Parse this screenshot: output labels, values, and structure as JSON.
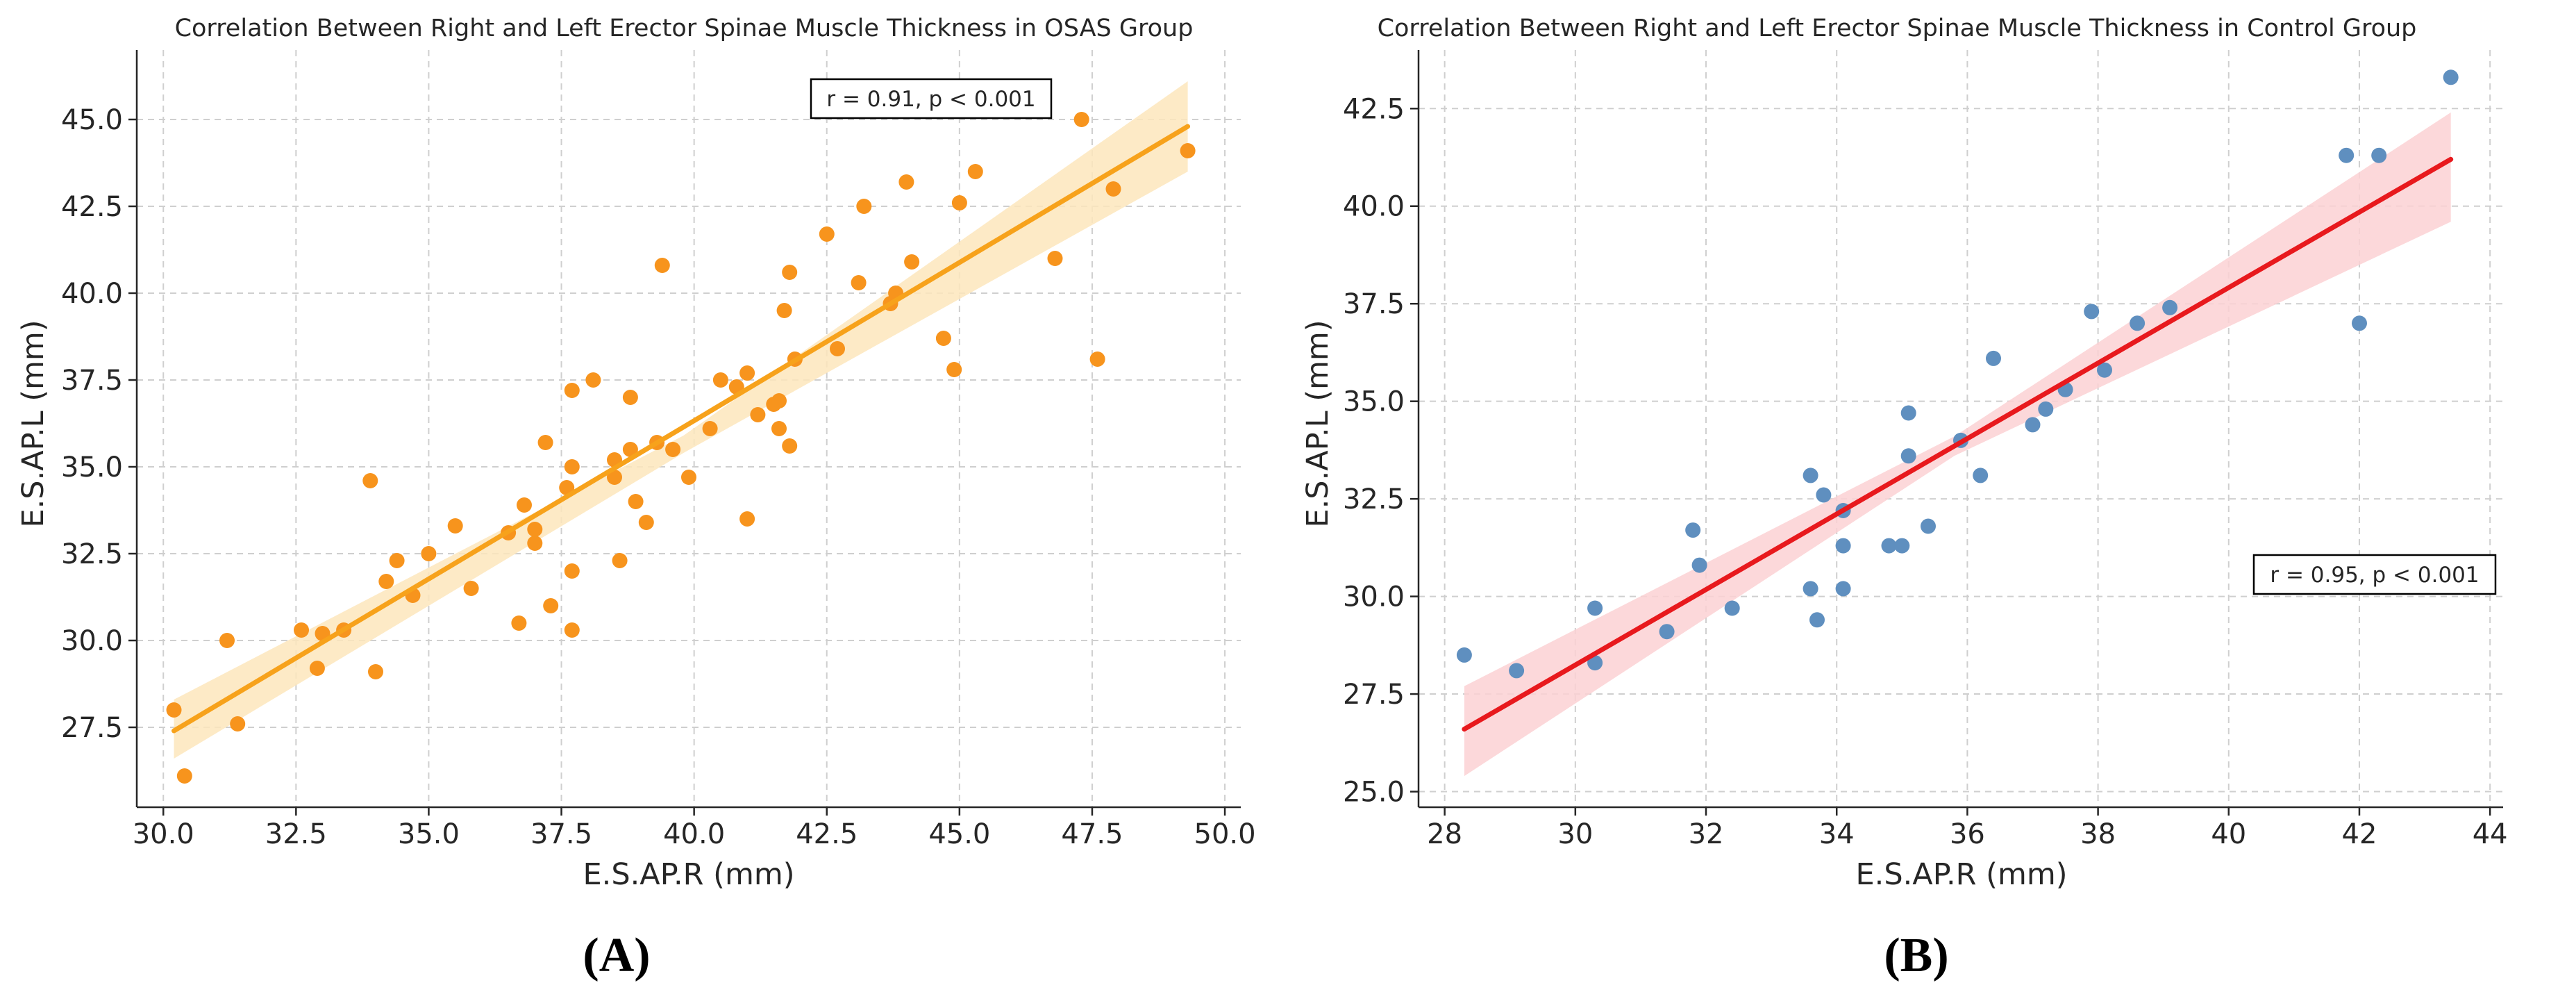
{
  "chart_data": [
    {
      "type": "scatter",
      "panel_label": "(A)",
      "title": "Correlation Between Right and Left Erector Spinae Muscle Thickness in OSAS Group",
      "xlabel": "E.S.AP.R (mm)",
      "ylabel": "E.S.AP.L (mm)",
      "xlim": [
        29.5,
        50.3
      ],
      "ylim": [
        25.2,
        47.0
      ],
      "xticks": [
        30.0,
        32.5,
        35.0,
        37.5,
        40.0,
        42.5,
        45.0,
        47.5,
        50.0
      ],
      "xtick_labels": [
        "30.0",
        "32.5",
        "35.0",
        "37.5",
        "40.0",
        "42.5",
        "45.0",
        "47.5",
        "50.0"
      ],
      "yticks": [
        27.5,
        30.0,
        32.5,
        35.0,
        37.5,
        40.0,
        42.5,
        45.0
      ],
      "ytick_labels": [
        "27.5",
        "30.0",
        "32.5",
        "35.0",
        "37.5",
        "40.0",
        "42.5",
        "45.0"
      ],
      "grid": true,
      "point_color": "#f7941d",
      "line_color": "#f7a21b",
      "band_color": "#fde6bc",
      "annotation": "r = 0.91, p < 0.001",
      "annotation_position": "top-right",
      "regression": {
        "x0": 30.2,
        "y0": 27.4,
        "x1": 49.3,
        "y1": 44.8
      },
      "ci_band": {
        "x": [
          30.2,
          39.8,
          49.3
        ],
        "lower": [
          26.6,
          35.4,
          43.5
        ],
        "upper": [
          28.3,
          35.9,
          46.1
        ]
      },
      "points": [
        {
          "x": 30.2,
          "y": 28.0
        },
        {
          "x": 30.4,
          "y": 26.1
        },
        {
          "x": 31.2,
          "y": 30.0
        },
        {
          "x": 31.4,
          "y": 27.6
        },
        {
          "x": 32.6,
          "y": 30.3
        },
        {
          "x": 32.9,
          "y": 29.2
        },
        {
          "x": 33.0,
          "y": 30.2
        },
        {
          "x": 33.4,
          "y": 30.3
        },
        {
          "x": 33.9,
          "y": 34.6
        },
        {
          "x": 34.0,
          "y": 29.1
        },
        {
          "x": 34.2,
          "y": 31.7
        },
        {
          "x": 34.4,
          "y": 32.3
        },
        {
          "x": 34.7,
          "y": 31.3
        },
        {
          "x": 35.0,
          "y": 32.5
        },
        {
          "x": 35.5,
          "y": 33.3
        },
        {
          "x": 35.8,
          "y": 31.5
        },
        {
          "x": 36.5,
          "y": 33.1
        },
        {
          "x": 36.7,
          "y": 30.5
        },
        {
          "x": 36.8,
          "y": 33.9
        },
        {
          "x": 37.0,
          "y": 33.2
        },
        {
          "x": 37.0,
          "y": 32.8
        },
        {
          "x": 37.2,
          "y": 35.7
        },
        {
          "x": 37.3,
          "y": 31.0
        },
        {
          "x": 37.6,
          "y": 34.4
        },
        {
          "x": 37.7,
          "y": 35.0
        },
        {
          "x": 37.7,
          "y": 37.2
        },
        {
          "x": 37.7,
          "y": 32.0
        },
        {
          "x": 37.7,
          "y": 30.3
        },
        {
          "x": 38.1,
          "y": 37.5
        },
        {
          "x": 38.5,
          "y": 35.2
        },
        {
          "x": 38.5,
          "y": 34.7
        },
        {
          "x": 38.6,
          "y": 32.3
        },
        {
          "x": 38.8,
          "y": 37.0
        },
        {
          "x": 38.8,
          "y": 35.5
        },
        {
          "x": 38.9,
          "y": 34.0
        },
        {
          "x": 39.1,
          "y": 33.4
        },
        {
          "x": 39.3,
          "y": 35.7
        },
        {
          "x": 39.4,
          "y": 40.8
        },
        {
          "x": 39.6,
          "y": 35.5
        },
        {
          "x": 39.9,
          "y": 34.7
        },
        {
          "x": 40.3,
          "y": 36.1
        },
        {
          "x": 40.5,
          "y": 37.5
        },
        {
          "x": 40.8,
          "y": 37.3
        },
        {
          "x": 41.0,
          "y": 33.5
        },
        {
          "x": 41.0,
          "y": 37.7
        },
        {
          "x": 41.2,
          "y": 36.5
        },
        {
          "x": 41.5,
          "y": 36.8
        },
        {
          "x": 41.6,
          "y": 36.1
        },
        {
          "x": 41.6,
          "y": 36.9
        },
        {
          "x": 41.7,
          "y": 39.5
        },
        {
          "x": 41.8,
          "y": 40.6
        },
        {
          "x": 41.8,
          "y": 35.6
        },
        {
          "x": 41.9,
          "y": 38.1
        },
        {
          "x": 42.5,
          "y": 41.7
        },
        {
          "x": 42.7,
          "y": 38.4
        },
        {
          "x": 43.1,
          "y": 40.3
        },
        {
          "x": 43.2,
          "y": 42.5
        },
        {
          "x": 43.7,
          "y": 39.7
        },
        {
          "x": 43.8,
          "y": 40.0
        },
        {
          "x": 44.0,
          "y": 43.2
        },
        {
          "x": 44.1,
          "y": 40.9
        },
        {
          "x": 44.7,
          "y": 38.7
        },
        {
          "x": 44.9,
          "y": 37.8
        },
        {
          "x": 45.0,
          "y": 42.6
        },
        {
          "x": 45.3,
          "y": 43.5
        },
        {
          "x": 46.8,
          "y": 41.0
        },
        {
          "x": 47.3,
          "y": 45.0
        },
        {
          "x": 47.6,
          "y": 38.1
        },
        {
          "x": 47.9,
          "y": 43.0
        },
        {
          "x": 49.3,
          "y": 44.1
        }
      ]
    },
    {
      "type": "scatter",
      "panel_label": "(B)",
      "title": "Correlation Between Right and Left Erector Spinae Muscle Thickness in Control Group",
      "xlabel": "E.S.AP.R (mm)",
      "ylabel": "E.S.AP.L (mm)",
      "xlim": [
        27.6,
        44.2
      ],
      "ylim": [
        24.6,
        44.0
      ],
      "xticks": [
        28,
        30,
        32,
        34,
        36,
        38,
        40,
        42,
        44
      ],
      "xtick_labels": [
        "28",
        "30",
        "32",
        "34",
        "36",
        "38",
        "40",
        "42",
        "44"
      ],
      "yticks": [
        25.0,
        27.5,
        30.0,
        32.5,
        35.0,
        37.5,
        40.0,
        42.5
      ],
      "ytick_labels": [
        "25.0",
        "27.5",
        "30.0",
        "32.5",
        "35.0",
        "37.5",
        "40.0",
        "42.5"
      ],
      "grid": true,
      "point_color": "#5f8fbf",
      "line_color": "#e8191d",
      "band_color": "#fbd1d3",
      "annotation": "r = 0.95, p < 0.001",
      "annotation_position": "center-right",
      "regression": {
        "x0": 28.3,
        "y0": 26.6,
        "x1": 43.4,
        "y1": 41.2
      },
      "ci_band": {
        "x": [
          28.3,
          35.8,
          43.4
        ],
        "lower": [
          25.4,
          33.6,
          39.6
        ],
        "upper": [
          27.7,
          34.1,
          42.4
        ]
      },
      "points": [
        {
          "x": 28.3,
          "y": 28.5
        },
        {
          "x": 29.1,
          "y": 28.1
        },
        {
          "x": 30.3,
          "y": 28.3
        },
        {
          "x": 30.3,
          "y": 29.7
        },
        {
          "x": 31.4,
          "y": 29.1
        },
        {
          "x": 31.8,
          "y": 31.7
        },
        {
          "x": 31.9,
          "y": 30.8
        },
        {
          "x": 32.4,
          "y": 29.7
        },
        {
          "x": 33.6,
          "y": 30.2
        },
        {
          "x": 33.6,
          "y": 33.1
        },
        {
          "x": 33.7,
          "y": 29.4
        },
        {
          "x": 33.8,
          "y": 32.6
        },
        {
          "x": 34.1,
          "y": 32.2
        },
        {
          "x": 34.1,
          "y": 31.3
        },
        {
          "x": 34.1,
          "y": 30.2
        },
        {
          "x": 34.8,
          "y": 31.3
        },
        {
          "x": 35.0,
          "y": 31.3
        },
        {
          "x": 35.1,
          "y": 33.6
        },
        {
          "x": 35.1,
          "y": 34.7
        },
        {
          "x": 35.4,
          "y": 31.8
        },
        {
          "x": 35.9,
          "y": 34.0
        },
        {
          "x": 36.2,
          "y": 33.1
        },
        {
          "x": 36.4,
          "y": 36.1
        },
        {
          "x": 37.0,
          "y": 34.4
        },
        {
          "x": 37.2,
          "y": 34.8
        },
        {
          "x": 37.5,
          "y": 35.3
        },
        {
          "x": 37.9,
          "y": 37.3
        },
        {
          "x": 38.1,
          "y": 35.8
        },
        {
          "x": 38.6,
          "y": 37.0
        },
        {
          "x": 39.1,
          "y": 37.4
        },
        {
          "x": 41.8,
          "y": 41.3
        },
        {
          "x": 42.0,
          "y": 37.0
        },
        {
          "x": 42.3,
          "y": 41.3
        },
        {
          "x": 43.4,
          "y": 43.3
        }
      ]
    }
  ]
}
